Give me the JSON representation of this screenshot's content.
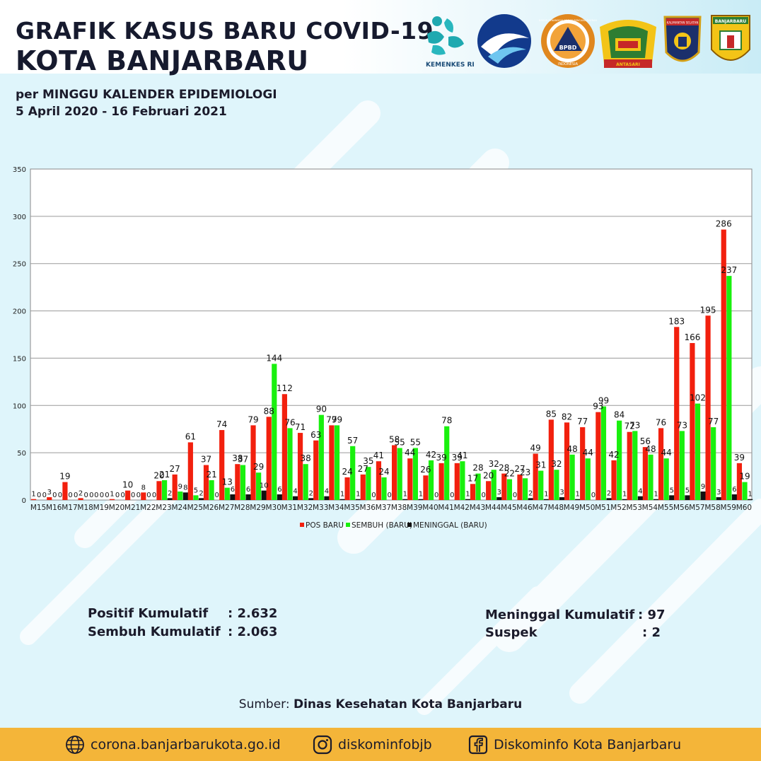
{
  "header": {
    "title_line1": "GRAFIK KASUS BARU COVID-19",
    "title_line2": "KOTA BANJARBARU",
    "subtitle_line1": "per MINGGU KALENDER EPIDEMIOLOGI",
    "subtitle_line2": "5 April 2020 - 16 Februari 2021"
  },
  "logos": {
    "kemenkes_label": "KEMENKES RI",
    "bpbd_top": "BADAN PENANGGULANGAN BENCANA DAERAH",
    "bpbd_center": "BPBD",
    "bpbd_bottom": "INDONESIA",
    "antasari_label": "ANTASARI",
    "kalsel_label": "KALIMANTAN SELATAN",
    "banjarbaru_label": "BANJARBARU",
    "icons": [
      "kemenkes-logo-icon",
      "kominfo-logo-icon",
      "bpbd-logo-icon",
      "antasari-logo-icon",
      "polda-kalsel-logo-icon",
      "banjarbaru-logo-icon"
    ]
  },
  "chart_data": {
    "type": "bar",
    "title": "",
    "xlabel": "",
    "ylabel": "",
    "ylim": [
      0,
      350
    ],
    "yticks": [
      0,
      50,
      100,
      150,
      200,
      250,
      300,
      350
    ],
    "grid": true,
    "legend_position": "bottom-center",
    "categories": [
      "M15",
      "M16",
      "M17",
      "M18",
      "M19",
      "M20",
      "M21",
      "M22",
      "M23",
      "M24",
      "M25",
      "M26",
      "M27",
      "M28",
      "M29",
      "M30",
      "M31",
      "M32",
      "M33",
      "M34",
      "M35",
      "M36",
      "M37",
      "M38",
      "M39",
      "M40",
      "M41",
      "M42",
      "M43",
      "M44",
      "M45",
      "M46",
      "M47",
      "M48",
      "M49",
      "M50",
      "M51",
      "M52",
      "M53",
      "M54",
      "M55",
      "M56",
      "M57",
      "M58",
      "M59",
      "M60"
    ],
    "series": [
      {
        "name": "POS BARU",
        "color": "#f2200e",
        "values": [
          1,
          3,
          19,
          2,
          0,
          1,
          10,
          8,
          20,
          27,
          61,
          37,
          74,
          38,
          79,
          88,
          112,
          71,
          63,
          79,
          24,
          27,
          41,
          58,
          44,
          26,
          39,
          39,
          17,
          20,
          28,
          27,
          49,
          85,
          82,
          77,
          93,
          42,
          72,
          56,
          76,
          183,
          166,
          195,
          286,
          39
        ]
      },
      {
        "name": "SEMBUH (BARU)",
        "color": "#19f00e",
        "values": [
          0,
          0,
          0,
          0,
          0,
          0,
          0,
          0,
          21,
          9,
          5,
          21,
          13,
          37,
          29,
          144,
          76,
          38,
          90,
          79,
          57,
          35,
          24,
          55,
          55,
          42,
          78,
          41,
          28,
          32,
          22,
          23,
          31,
          32,
          48,
          44,
          99,
          84,
          73,
          48,
          44,
          73,
          102,
          77,
          237,
          19
        ]
      },
      {
        "name": "MENINGGAL (BARU)",
        "color": "#111111",
        "values": [
          0,
          0,
          0,
          0,
          0,
          0,
          0,
          0,
          2,
          8,
          2,
          0,
          6,
          6,
          10,
          6,
          4,
          2,
          4,
          1,
          1,
          0,
          0,
          1,
          1,
          0,
          0,
          1,
          0,
          3,
          0,
          2,
          1,
          3,
          1,
          0,
          2,
          1,
          4,
          1,
          5,
          5,
          9,
          3,
          6,
          1
        ]
      }
    ]
  },
  "summary": {
    "positif_label": "Positif Kumulatif",
    "positif_value": ": 2.632",
    "sembuh_label": "Sembuh Kumulatif",
    "sembuh_value": ": 2.063",
    "meninggal_label": "Meninggal Kumulatif",
    "meninggal_value": ": 97",
    "suspek_label": "Suspek",
    "suspek_value": ": 2"
  },
  "source": {
    "prefix": "Sumber: ",
    "name": "Dinas Kesehatan Kota Banjarbaru"
  },
  "footer": {
    "website": "corona.banjarbarukota.go.id",
    "instagram": "diskominfobjb",
    "facebook": "Diskominfo Kota Banjarbaru",
    "icons": [
      "globe-icon",
      "instagram-icon",
      "facebook-icon"
    ]
  },
  "colors": {
    "footer_bg": "#f4b539",
    "background": "#dff5fb",
    "title": "#161a2e"
  }
}
